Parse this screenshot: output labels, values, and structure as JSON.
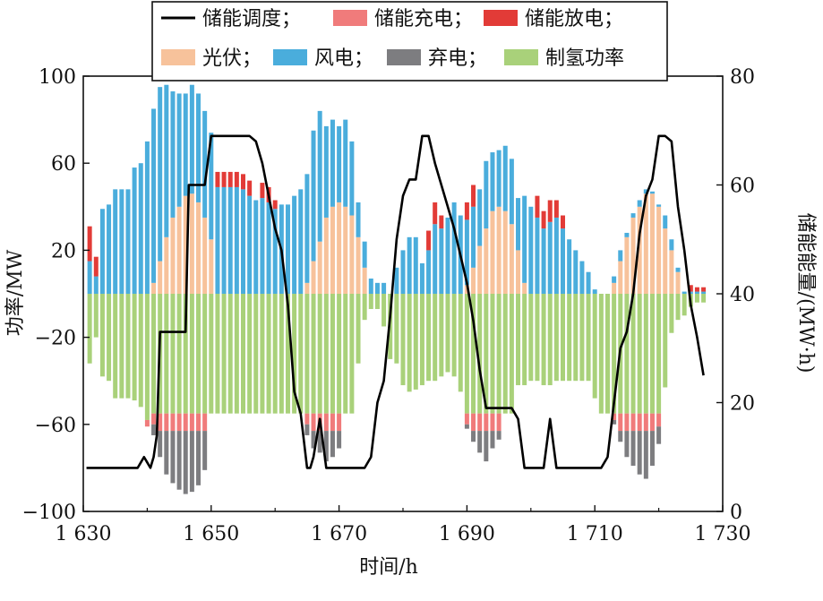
{
  "chart_data": {
    "type": "bar",
    "xlabel": "时间/h",
    "ylabel": "功率/MW",
    "y2label": "储能能量/(MW·h)",
    "xlim": [
      1630,
      1730
    ],
    "ylim": [
      -100,
      100
    ],
    "y2lim": [
      0,
      80
    ],
    "x_ticks": [
      1630,
      1650,
      1670,
      1690,
      1710,
      1730
    ],
    "x_tick_labels": [
      "1 630",
      "1 650",
      "1 670",
      "1 690",
      "1 710",
      "1 730"
    ],
    "y_ticks": [
      -100,
      -60,
      -20,
      20,
      60,
      100
    ],
    "y_tick_labels": [
      "−100",
      "−60",
      "−20",
      "20",
      "60",
      "100"
    ],
    "y2_ticks": [
      0,
      20,
      40,
      60,
      80
    ],
    "y2_tick_labels": [
      "0",
      "20",
      "40",
      "60",
      "80"
    ],
    "legend": [
      {
        "name": "储能调度；",
        "kind": "line",
        "color": "#000000"
      },
      {
        "name": "储能充电；",
        "kind": "bar",
        "color": "#f07b7b"
      },
      {
        "name": "储能放电；",
        "kind": "bar",
        "color": "#e23b37"
      },
      {
        "name": "光伏；",
        "kind": "bar",
        "color": "#f7c29b"
      },
      {
        "name": "风电；",
        "kind": "bar",
        "color": "#4aaddc"
      },
      {
        "name": "弃电；",
        "kind": "bar",
        "color": "#7d7d80"
      },
      {
        "name": "制氢功率",
        "kind": "bar",
        "color": "#a9d17a"
      }
    ],
    "hours": [
      1631,
      1632,
      1633,
      1634,
      1635,
      1636,
      1637,
      1638,
      1639,
      1640,
      1641,
      1642,
      1643,
      1644,
      1645,
      1646,
      1647,
      1648,
      1649,
      1650,
      1651,
      1652,
      1653,
      1654,
      1655,
      1656,
      1657,
      1658,
      1659,
      1660,
      1661,
      1662,
      1663,
      1664,
      1665,
      1666,
      1667,
      1668,
      1669,
      1670,
      1671,
      1672,
      1673,
      1674,
      1675,
      1676,
      1677,
      1678,
      1679,
      1680,
      1681,
      1682,
      1683,
      1684,
      1685,
      1686,
      1687,
      1688,
      1689,
      1690,
      1691,
      1692,
      1693,
      1694,
      1695,
      1696,
      1697,
      1698,
      1699,
      1700,
      1701,
      1702,
      1703,
      1704,
      1705,
      1706,
      1707,
      1708,
      1709,
      1710,
      1711,
      1712,
      1713,
      1714,
      1715,
      1716,
      1717,
      1718,
      1719,
      1720,
      1721,
      1722,
      1723,
      1724,
      1725,
      1726,
      1727
    ],
    "series": [
      {
        "name": "光伏",
        "color": "#f7c29b",
        "values": [
          0,
          0,
          0,
          0,
          0,
          0,
          0,
          0,
          0,
          0,
          5,
          15,
          26,
          35,
          40,
          45,
          46,
          42,
          35,
          25,
          0,
          0,
          0,
          0,
          0,
          0,
          0,
          0,
          0,
          0,
          0,
          0,
          0,
          0,
          5,
          15,
          24,
          35,
          40,
          42,
          40,
          36,
          26,
          12,
          0,
          0,
          0,
          0,
          0,
          0,
          0,
          0,
          0,
          0,
          0,
          0,
          0,
          0,
          0,
          4,
          12,
          22,
          30,
          38,
          40,
          38,
          32,
          20,
          5,
          0,
          0,
          0,
          0,
          0,
          0,
          0,
          0,
          0,
          0,
          0,
          0,
          0,
          5,
          15,
          26,
          35,
          40,
          46,
          46,
          40,
          30,
          20,
          10,
          0,
          0,
          0,
          0
        ]
      },
      {
        "name": "风电",
        "color": "#4aaddc",
        "values": [
          15,
          8,
          39,
          41,
          48,
          48,
          48,
          58,
          60,
          70,
          80,
          80,
          70,
          58,
          52,
          47,
          50,
          50,
          49,
          49,
          49,
          49,
          49,
          49,
          48,
          45,
          43,
          44,
          42,
          39,
          41,
          41,
          45,
          48,
          50,
          60,
          60,
          42,
          40,
          35,
          40,
          34,
          16,
          12,
          7,
          5,
          5,
          0,
          12,
          20,
          26,
          26,
          14,
          20,
          32,
          30,
          35,
          42,
          36,
          30,
          28,
          26,
          31,
          27,
          26,
          30,
          30,
          24,
          40,
          40,
          35,
          30,
          33,
          35,
          30,
          25,
          20,
          15,
          10,
          2,
          0,
          0,
          3,
          5,
          2,
          2,
          3,
          2,
          1,
          1,
          6,
          5,
          2,
          1,
          1,
          1,
          1
        ]
      },
      {
        "name": "弃电",
        "color": "#7d7d80",
        "values": [
          0,
          0,
          0,
          0,
          0,
          0,
          0,
          0,
          0,
          0,
          -5,
          -12,
          -20,
          -24,
          -27,
          -29,
          -28,
          -25,
          -18,
          0,
          0,
          0,
          0,
          0,
          0,
          0,
          0,
          0,
          0,
          0,
          0,
          0,
          0,
          0,
          -5,
          -8,
          -10,
          -14,
          -12,
          -8,
          0,
          0,
          0,
          0,
          0,
          0,
          0,
          0,
          0,
          0,
          0,
          0,
          0,
          0,
          0,
          0,
          0,
          0,
          0,
          -2,
          -5,
          -10,
          -14,
          -8,
          -4,
          0,
          0,
          0,
          0,
          0,
          0,
          0,
          0,
          0,
          0,
          0,
          0,
          0,
          0,
          0,
          0,
          0,
          -2,
          -5,
          -12,
          -16,
          -20,
          -22,
          -16,
          -8,
          0,
          0,
          0,
          0,
          0,
          0,
          0
        ]
      },
      {
        "name": "制氢功率",
        "color": "#a9d17a",
        "values": [
          -32,
          -20,
          -38,
          -40,
          -48,
          -48,
          -48,
          -49,
          -52,
          -58,
          -55,
          -55,
          -55,
          -55,
          -55,
          -55,
          -55,
          -55,
          -55,
          -55,
          -55,
          -55,
          -55,
          -55,
          -55,
          -55,
          -55,
          -55,
          -55,
          -55,
          -55,
          -55,
          -55,
          -55,
          -55,
          -55,
          -55,
          -55,
          -55,
          -55,
          -55,
          -55,
          -32,
          -12,
          -7,
          -7,
          -15,
          -30,
          -32,
          -42,
          -45,
          -44,
          -42,
          -40,
          -40,
          -38,
          -36,
          -38,
          -45,
          -55,
          -55,
          -55,
          -55,
          -55,
          -55,
          -55,
          -55,
          -42,
          -42,
          -40,
          -40,
          -42,
          -42,
          -40,
          -40,
          -40,
          -40,
          -40,
          -40,
          -48,
          -55,
          -55,
          -55,
          -55,
          -55,
          -55,
          -55,
          -55,
          -55,
          -55,
          -43,
          -18,
          -12,
          -10,
          -6,
          -4,
          -4
        ]
      },
      {
        "name": "储能充电",
        "color": "#f07b7b",
        "values": [
          0,
          0,
          0,
          0,
          0,
          0,
          0,
          0,
          0,
          -3,
          -5,
          -8,
          -8,
          -8,
          -8,
          -8,
          -8,
          -8,
          -8,
          0,
          0,
          0,
          0,
          0,
          0,
          0,
          0,
          0,
          0,
          0,
          0,
          0,
          0,
          0,
          -5,
          -8,
          -8,
          -8,
          -8,
          -8,
          0,
          0,
          0,
          0,
          0,
          0,
          0,
          0,
          0,
          0,
          0,
          0,
          0,
          0,
          0,
          0,
          0,
          0,
          0,
          -5,
          -8,
          -8,
          -8,
          -8,
          -8,
          0,
          0,
          0,
          0,
          0,
          0,
          0,
          0,
          0,
          0,
          0,
          0,
          0,
          0,
          0,
          0,
          0,
          -3,
          -8,
          -8,
          -8,
          -8,
          -8,
          -8,
          -6,
          0,
          0,
          0,
          0,
          0,
          0,
          0
        ]
      },
      {
        "name": "储能放电",
        "color": "#e23b37",
        "values": [
          16,
          9,
          0,
          0,
          0,
          0,
          0,
          0,
          0,
          0,
          0,
          0,
          0,
          0,
          0,
          0,
          0,
          0,
          0,
          0,
          7,
          7,
          7,
          7,
          7,
          7,
          0,
          7,
          7,
          4,
          0,
          0,
          0,
          0,
          0,
          0,
          0,
          0,
          0,
          0,
          0,
          0,
          0,
          0,
          0,
          0,
          0,
          0,
          0,
          0,
          0,
          0,
          0,
          9,
          10,
          6,
          0,
          0,
          0,
          8,
          10,
          0,
          0,
          0,
          0,
          0,
          0,
          0,
          0,
          0,
          10,
          8,
          10,
          8,
          6,
          0,
          0,
          0,
          0,
          0,
          0,
          0,
          0,
          0,
          0,
          0,
          0,
          0,
          0,
          0,
          0,
          0,
          0,
          0,
          3,
          2,
          2
        ]
      }
    ],
    "line": {
      "name": "储能调度",
      "color": "#000000",
      "x": [
        1630.5,
        1636.5,
        1637,
        1638,
        1638.5,
        1639,
        1639.5,
        1640,
        1640.5,
        1641,
        1641.5,
        1642,
        1644,
        1644.5,
        1645,
        1646,
        1646.5,
        1647,
        1649,
        1650,
        1651,
        1652,
        1654,
        1655,
        1655.5,
        1656,
        1657,
        1658,
        1659,
        1660,
        1661,
        1662,
        1663,
        1664,
        1665,
        1665.5,
        1666,
        1667,
        1668,
        1669,
        1670,
        1671,
        1672,
        1673,
        1674,
        1675,
        1676,
        1677,
        1678,
        1679,
        1680,
        1681,
        1682,
        1683,
        1684,
        1685,
        1686,
        1687,
        1688,
        1689,
        1690,
        1691,
        1692,
        1693,
        1694,
        1695,
        1696,
        1697,
        1698,
        1699,
        1700,
        1701,
        1702,
        1703,
        1704,
        1705,
        1706,
        1707,
        1708,
        1709,
        1710,
        1711,
        1712,
        1713,
        1714,
        1715,
        1716,
        1717,
        1718,
        1719,
        1720,
        1721,
        1722,
        1723,
        1724,
        1725,
        1726,
        1727
      ],
      "y": [
        8,
        8,
        8,
        8,
        8,
        9,
        10,
        9,
        8,
        10,
        14,
        33,
        33,
        33,
        33,
        33,
        60,
        60,
        60,
        69,
        69,
        69,
        69,
        69,
        69,
        69,
        68,
        64,
        58,
        52,
        48,
        38,
        22,
        18,
        8,
        8,
        10,
        17,
        8,
        8,
        8,
        8,
        8,
        8,
        8,
        10,
        20,
        24,
        36,
        50,
        58,
        61,
        61,
        69,
        69,
        64,
        60,
        56,
        52,
        47,
        42,
        35,
        26,
        19,
        19,
        19,
        19,
        19,
        17,
        8,
        8,
        8,
        8,
        17,
        8,
        8,
        8,
        8,
        8,
        8,
        8,
        8,
        10,
        20,
        30,
        33,
        40,
        51,
        58,
        61,
        69,
        69,
        68,
        56,
        48,
        38,
        32,
        25
      ]
    }
  }
}
